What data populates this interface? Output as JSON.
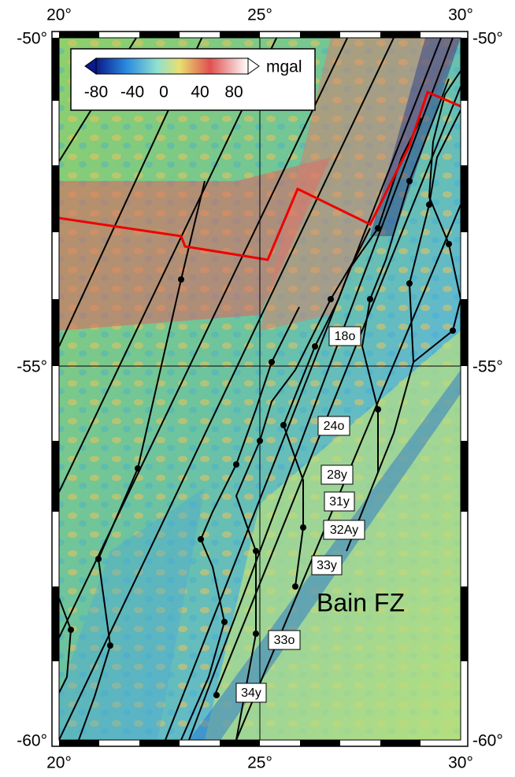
{
  "map": {
    "lon_labels": [
      "20°",
      "25°",
      "30°"
    ],
    "lat_labels": [
      "-50°",
      "-55°",
      "-60°"
    ],
    "colorbar": {
      "unit": "mgal",
      "ticks": [
        "-80",
        "-40",
        "0",
        "40",
        "80"
      ]
    },
    "anomaly_labels": [
      "18o",
      "24o",
      "28y",
      "31y",
      "32Ay",
      "33y",
      "33o",
      "34y"
    ],
    "feature_label": "Bain FZ"
  }
}
